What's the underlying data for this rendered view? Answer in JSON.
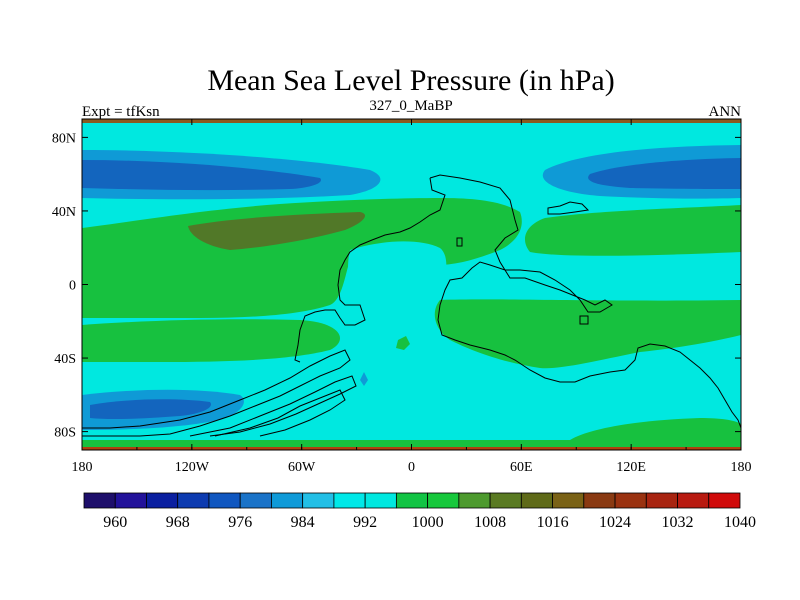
{
  "chart_data": {
    "type": "heatmap",
    "title": "Mean Sea Level Pressure (in hPa)",
    "left_label": "Expt = tfKsn",
    "center_label": "327_0_MaBP",
    "right_label": "ANN",
    "x_ticks": [
      "180",
      "120W",
      "60W",
      "0",
      "60E",
      "120E",
      "180"
    ],
    "y_ticks": [
      "80N",
      "40N",
      "0",
      "40S",
      "80S"
    ],
    "x_range_deg": [
      -180,
      180
    ],
    "y_range_deg": [
      -90,
      90
    ],
    "colorbar_ticks": [
      "960",
      "968",
      "976",
      "984",
      "992",
      "1000",
      "1008",
      "1016",
      "1024",
      "1032",
      "1040"
    ],
    "colorbar_colors": [
      "#1e0f6b",
      "#22129a",
      "#0a1fa0",
      "#0d3bb0",
      "#1057c0",
      "#1a73c8",
      "#0f9ad8",
      "#22bfe6",
      "#00e8e8",
      "#00e8e0",
      "#12c444",
      "#17c83c",
      "#4d9a2e",
      "#5a7a22",
      "#5f6a18",
      "#7a6216",
      "#8a3a12",
      "#9a3210",
      "#a82410",
      "#b81a10",
      "#d00a0a"
    ],
    "region_colors": {
      "background": "#00e8e0",
      "p1000_1008": "#17c13f",
      "p1016_1024": "#517828",
      "p984_992": "#0f9ad6",
      "p976_984": "#1365be",
      "edge_high": "#8a3a12"
    }
  }
}
